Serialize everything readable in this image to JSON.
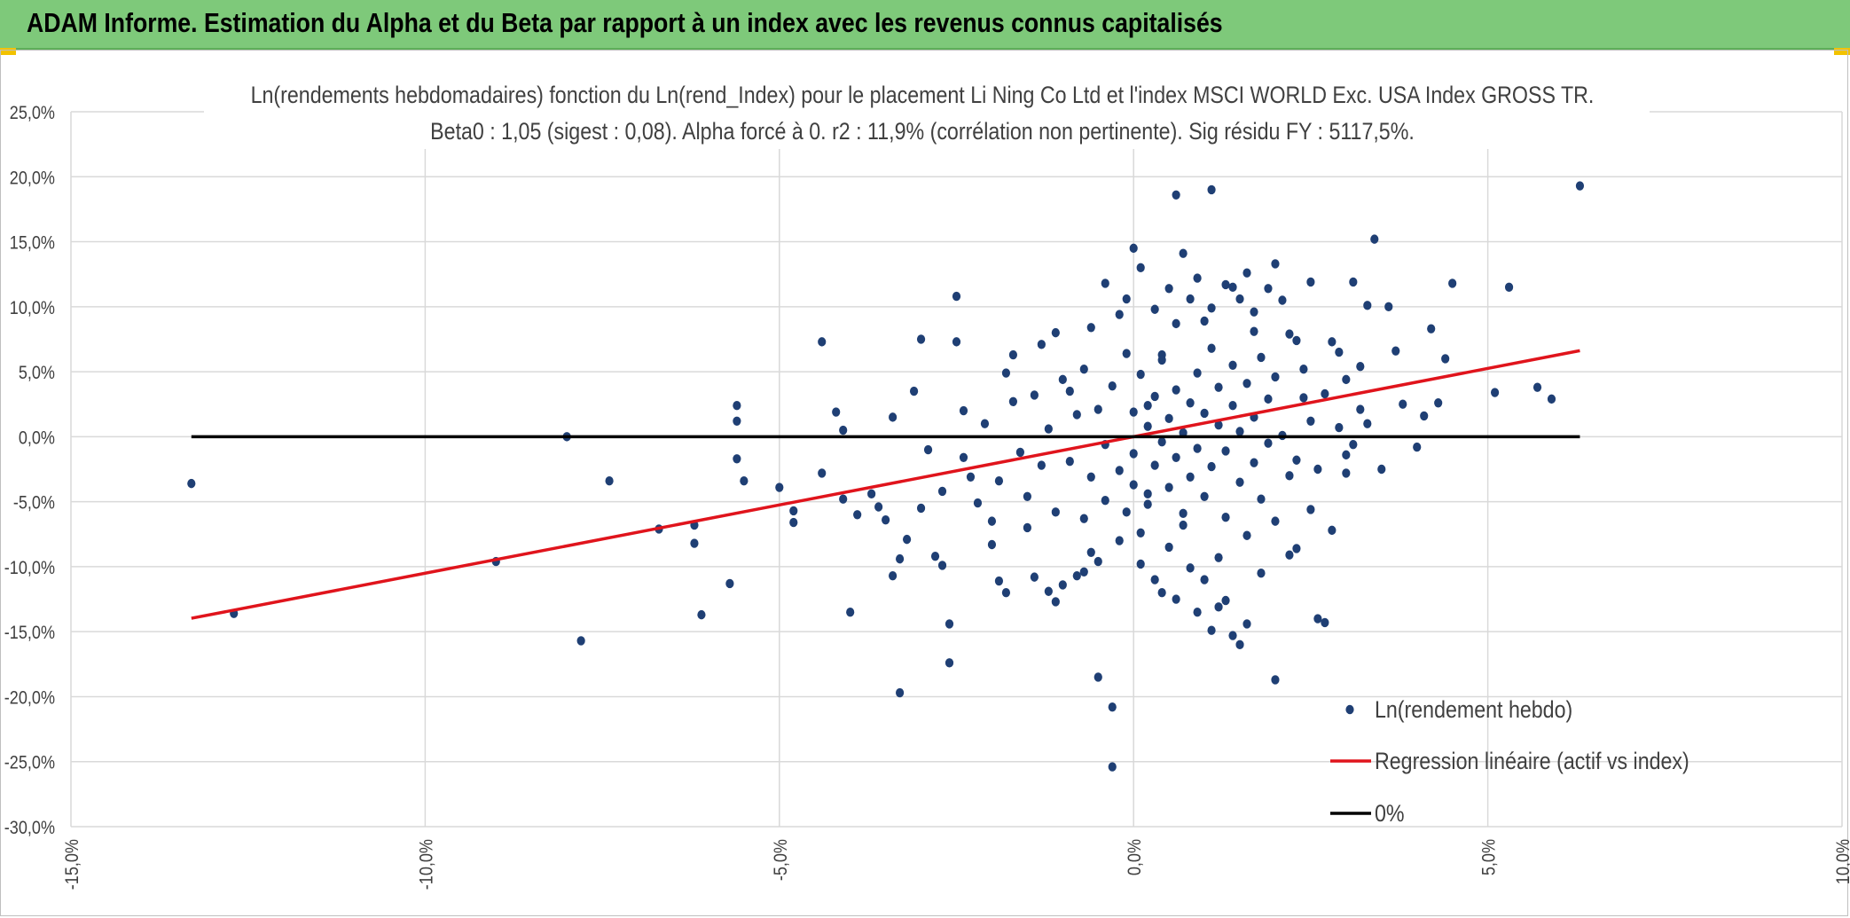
{
  "banner": {
    "title": "ADAM Informe. Estimation du Alpha et du Beta par rapport à un index avec les revenus connus capitalisés"
  },
  "colors": {
    "banner_bg": "#7ec97a",
    "point": "#1f3f74",
    "regression": "#e0141c",
    "zero_line": "#000000",
    "grid": "#d9d9d9"
  },
  "chart_data": {
    "type": "scatter",
    "title": "Ln(rendements hebdomadaires) fonction du Ln(rend_Index) pour le placement Li Ning Co Ltd et l'index MSCI WORLD Exc. USA Index GROSS TR.",
    "subtitle": "Beta0 : 1,05 (sigest : 0,08). Alpha forcé à 0. r2 : 11,9% (corrélation non pertinente). Sig résidu FY : 5117,5%.",
    "xlabel": "",
    "ylabel": "",
    "xlim": [
      -15,
      10
    ],
    "ylim": [
      -30,
      25
    ],
    "x_ticks": [
      -15,
      -10,
      -5,
      0,
      5,
      10
    ],
    "y_ticks": [
      25,
      20,
      15,
      10,
      5,
      0,
      -5,
      -10,
      -15,
      -20,
      -25,
      -30
    ],
    "x_tick_labels": [
      "-15,0%",
      "-10,0%",
      "-5,0%",
      "0,0%",
      "5,0%",
      "10,0%"
    ],
    "y_tick_labels": [
      "25,0%",
      "20,0%",
      "15,0%",
      "10,0%",
      "5,0%",
      "0,0%",
      "-5,0%",
      "-10,0%",
      "-15,0%",
      "-20,0%",
      "-25,0%",
      "-30,0%"
    ],
    "grid": true,
    "legend_position": "bottom-right",
    "series": [
      {
        "name": "Ln(rendement hebdo)",
        "kind": "scatter",
        "points": [
          [
            -13.3,
            -3.6
          ],
          [
            -12.7,
            -13.6
          ],
          [
            -9.0,
            -9.6
          ],
          [
            -8.0,
            0.0
          ],
          [
            -7.4,
            -3.4
          ],
          [
            -7.8,
            -15.7
          ],
          [
            -6.7,
            -7.1
          ],
          [
            -6.2,
            -6.8
          ],
          [
            -6.2,
            -8.2
          ],
          [
            -6.1,
            -13.7
          ],
          [
            -5.7,
            -11.3
          ],
          [
            -5.6,
            2.4
          ],
          [
            -5.6,
            1.2
          ],
          [
            -5.6,
            -1.7
          ],
          [
            -5.5,
            -3.4
          ],
          [
            -5.0,
            -3.9
          ],
          [
            -4.8,
            -5.7
          ],
          [
            -4.8,
            -6.6
          ],
          [
            -4.4,
            -2.8
          ],
          [
            -4.4,
            7.3
          ],
          [
            -4.2,
            1.9
          ],
          [
            -4.1,
            0.5
          ],
          [
            -4.1,
            -4.8
          ],
          [
            -4.0,
            -13.5
          ],
          [
            -3.9,
            -6.0
          ],
          [
            -3.7,
            -4.4
          ],
          [
            -3.6,
            -5.4
          ],
          [
            -3.5,
            -6.4
          ],
          [
            -3.4,
            1.5
          ],
          [
            -3.4,
            -10.7
          ],
          [
            -3.3,
            -9.4
          ],
          [
            -3.3,
            -19.7
          ],
          [
            -3.2,
            -7.9
          ],
          [
            -3.1,
            3.5
          ],
          [
            -3.0,
            -5.5
          ],
          [
            -3.0,
            7.5
          ],
          [
            -2.9,
            -1.0
          ],
          [
            -2.8,
            -9.2
          ],
          [
            -2.7,
            -4.2
          ],
          [
            -2.7,
            -9.9
          ],
          [
            -2.6,
            -14.4
          ],
          [
            -2.6,
            -17.4
          ],
          [
            -2.5,
            10.8
          ],
          [
            -2.5,
            7.3
          ],
          [
            -2.4,
            2.0
          ],
          [
            -2.3,
            -3.1
          ],
          [
            -2.2,
            -5.1
          ],
          [
            -2.0,
            -6.5
          ],
          [
            -1.9,
            -11.1
          ],
          [
            -1.8,
            -12.0
          ],
          [
            -1.7,
            6.3
          ],
          [
            -1.5,
            -7.0
          ],
          [
            -1.4,
            -10.8
          ],
          [
            -1.3,
            7.1
          ],
          [
            -1.2,
            -11.9
          ],
          [
            -1.1,
            -12.7
          ],
          [
            -1.0,
            -11.4
          ],
          [
            -0.9,
            3.5
          ],
          [
            -0.8,
            -10.7
          ],
          [
            -0.7,
            -10.4
          ],
          [
            -0.6,
            8.4
          ],
          [
            -0.5,
            -9.6
          ],
          [
            -0.5,
            -18.5
          ],
          [
            -0.4,
            11.8
          ],
          [
            -0.4,
            -4.9
          ],
          [
            -0.3,
            -20.8
          ],
          [
            -0.3,
            -25.4
          ],
          [
            -0.2,
            9.4
          ],
          [
            -0.2,
            -8.0
          ],
          [
            -0.1,
            10.6
          ],
          [
            -0.1,
            -5.8
          ],
          [
            0.0,
            14.5
          ],
          [
            0.0,
            -3.7
          ],
          [
            0.1,
            13.0
          ],
          [
            0.1,
            -7.4
          ],
          [
            0.2,
            2.4
          ],
          [
            0.2,
            -4.4
          ],
          [
            0.3,
            9.8
          ],
          [
            0.3,
            -11.0
          ],
          [
            0.4,
            6.3
          ],
          [
            0.4,
            -12.0
          ],
          [
            0.5,
            11.4
          ],
          [
            0.5,
            -8.5
          ],
          [
            0.6,
            18.6
          ],
          [
            0.6,
            -12.5
          ],
          [
            0.7,
            14.1
          ],
          [
            0.7,
            -6.8
          ],
          [
            0.8,
            10.6
          ],
          [
            0.8,
            -10.1
          ],
          [
            0.9,
            12.2
          ],
          [
            0.9,
            -13.5
          ],
          [
            1.0,
            8.9
          ],
          [
            1.0,
            -11.0
          ],
          [
            1.1,
            9.9
          ],
          [
            1.1,
            -14.9
          ],
          [
            1.1,
            19.0
          ],
          [
            1.2,
            -13.1
          ],
          [
            1.3,
            11.7
          ],
          [
            1.3,
            -12.6
          ],
          [
            1.4,
            11.5
          ],
          [
            1.4,
            -15.3
          ],
          [
            1.5,
            10.6
          ],
          [
            1.5,
            -16.0
          ],
          [
            1.6,
            12.6
          ],
          [
            1.6,
            -14.4
          ],
          [
            1.7,
            9.6
          ],
          [
            1.8,
            -10.5
          ],
          [
            1.9,
            11.4
          ],
          [
            2.0,
            13.3
          ],
          [
            2.0,
            -18.7
          ],
          [
            2.1,
            10.5
          ],
          [
            2.2,
            -9.1
          ],
          [
            2.3,
            7.4
          ],
          [
            2.4,
            3.0
          ],
          [
            2.5,
            11.9
          ],
          [
            2.6,
            -14.0
          ],
          [
            2.7,
            -14.3
          ],
          [
            2.8,
            7.3
          ],
          [
            2.9,
            6.5
          ],
          [
            3.0,
            -1.4
          ],
          [
            3.0,
            -2.8
          ],
          [
            3.1,
            11.9
          ],
          [
            3.2,
            5.4
          ],
          [
            3.3,
            1.0
          ],
          [
            3.3,
            10.1
          ],
          [
            3.4,
            15.2
          ],
          [
            3.5,
            -2.5
          ],
          [
            3.6,
            10.0
          ],
          [
            3.7,
            6.6
          ],
          [
            3.8,
            2.5
          ],
          [
            4.0,
            -0.8
          ],
          [
            4.1,
            1.6
          ],
          [
            4.2,
            8.3
          ],
          [
            4.3,
            2.6
          ],
          [
            4.4,
            6.0
          ],
          [
            4.5,
            11.8
          ],
          [
            5.1,
            3.4
          ],
          [
            5.3,
            11.5
          ],
          [
            5.7,
            3.8
          ],
          [
            5.9,
            2.9
          ],
          [
            6.3,
            19.3
          ],
          [
            -2.4,
            -1.6
          ],
          [
            -2.1,
            1.0
          ],
          [
            -1.9,
            -3.4
          ],
          [
            -1.7,
            2.7
          ],
          [
            -1.6,
            -1.2
          ],
          [
            -1.5,
            -4.6
          ],
          [
            -1.4,
            3.2
          ],
          [
            -1.3,
            -2.2
          ],
          [
            -1.2,
            0.6
          ],
          [
            -1.1,
            -5.8
          ],
          [
            -1.0,
            4.4
          ],
          [
            -0.9,
            -1.9
          ],
          [
            -0.8,
            1.7
          ],
          [
            -0.7,
            -6.3
          ],
          [
            -0.7,
            5.2
          ],
          [
            -0.6,
            -3.1
          ],
          [
            -0.5,
            2.1
          ],
          [
            -0.4,
            -0.6
          ],
          [
            -0.3,
            3.9
          ],
          [
            -0.2,
            -2.6
          ],
          [
            -0.1,
            6.4
          ],
          [
            0.0,
            -1.3
          ],
          [
            0.0,
            1.9
          ],
          [
            0.1,
            4.8
          ],
          [
            0.2,
            -5.2
          ],
          [
            0.2,
            0.8
          ],
          [
            0.3,
            -2.2
          ],
          [
            0.3,
            3.1
          ],
          [
            0.4,
            -0.4
          ],
          [
            0.4,
            5.9
          ],
          [
            0.5,
            -3.9
          ],
          [
            0.5,
            1.4
          ],
          [
            0.6,
            -1.6
          ],
          [
            0.6,
            3.6
          ],
          [
            0.7,
            -5.9
          ],
          [
            0.7,
            0.3
          ],
          [
            0.8,
            2.6
          ],
          [
            0.8,
            -3.1
          ],
          [
            0.9,
            4.9
          ],
          [
            0.9,
            -0.9
          ],
          [
            1.0,
            1.8
          ],
          [
            1.0,
            -4.6
          ],
          [
            1.1,
            6.8
          ],
          [
            1.1,
            -2.3
          ],
          [
            1.2,
            0.9
          ],
          [
            1.2,
            3.8
          ],
          [
            1.3,
            -6.2
          ],
          [
            1.3,
            -1.1
          ],
          [
            1.4,
            2.4
          ],
          [
            1.4,
            5.5
          ],
          [
            1.5,
            -3.5
          ],
          [
            1.5,
            0.4
          ],
          [
            1.6,
            4.1
          ],
          [
            1.6,
            -7.6
          ],
          [
            1.7,
            1.5
          ],
          [
            1.7,
            -2.0
          ],
          [
            1.8,
            6.1
          ],
          [
            1.8,
            -4.8
          ],
          [
            1.9,
            2.9
          ],
          [
            1.9,
            -0.5
          ],
          [
            2.0,
            -6.5
          ],
          [
            2.0,
            4.6
          ],
          [
            2.1,
            0.1
          ],
          [
            2.2,
            -3.0
          ],
          [
            2.2,
            7.9
          ],
          [
            2.3,
            -1.8
          ],
          [
            2.4,
            5.2
          ],
          [
            2.5,
            -5.6
          ],
          [
            2.5,
            1.2
          ],
          [
            2.6,
            -2.5
          ],
          [
            2.7,
            3.3
          ],
          [
            2.8,
            -7.2
          ],
          [
            2.9,
            0.7
          ],
          [
            3.0,
            4.4
          ],
          [
            3.1,
            -0.6
          ],
          [
            3.2,
            2.1
          ],
          [
            -2.0,
            -8.3
          ],
          [
            -1.8,
            4.9
          ],
          [
            -1.1,
            8.0
          ],
          [
            -0.6,
            -8.9
          ],
          [
            0.1,
            -9.8
          ],
          [
            0.6,
            8.7
          ],
          [
            1.2,
            -9.3
          ],
          [
            1.7,
            8.1
          ],
          [
            2.3,
            -8.6
          ]
        ]
      },
      {
        "name": "Regression linéaire (actif vs index)",
        "kind": "line",
        "x": [
          -13.3,
          6.3
        ],
        "y": [
          -13.97,
          6.62
        ]
      },
      {
        "name": "0%",
        "kind": "line",
        "x": [
          -13.3,
          6.3
        ],
        "y": [
          0,
          0
        ]
      }
    ]
  }
}
